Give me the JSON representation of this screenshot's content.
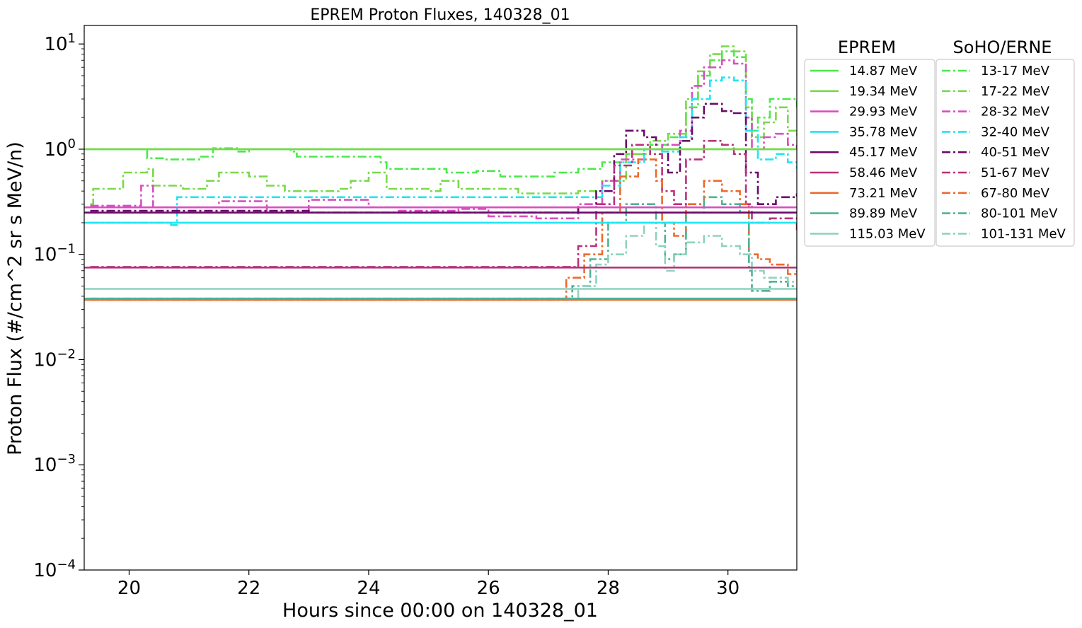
{
  "chart_data": {
    "type": "line",
    "title": "EPREM Proton Fluxes, 140328_01",
    "xlabel": "Hours since 00:00 on 140328_01",
    "ylabel": "Proton Flux (#/cm^2 sr s MeV/n)",
    "xlim": [
      19.25,
      31.15
    ],
    "ylim": [
      0.0001,
      15
    ],
    "yscale": "log",
    "grid": false,
    "x_ticks": [
      {
        "value": 20,
        "label": "20"
      },
      {
        "value": 22,
        "label": "22"
      },
      {
        "value": 24,
        "label": "24"
      },
      {
        "value": 26,
        "label": "26"
      },
      {
        "value": 28,
        "label": "28"
      },
      {
        "value": 30,
        "label": "30"
      }
    ],
    "y_ticks": [
      {
        "value": 10,
        "base": "10",
        "exp": "1"
      },
      {
        "value": 1,
        "base": "10",
        "exp": "0"
      },
      {
        "value": 0.1,
        "base": "10",
        "exp": "−1"
      },
      {
        "value": 0.01,
        "base": "10",
        "exp": "−2"
      },
      {
        "value": 0.001,
        "base": "10",
        "exp": "−3"
      },
      {
        "value": 0.0001,
        "base": "10",
        "exp": "−4"
      }
    ],
    "legends": [
      {
        "title": "EPREM",
        "placement": "outside-right",
        "style": "solid",
        "entries": [
          "14.87 MeV",
          "19.34 MeV",
          "29.93 MeV",
          "35.78 MeV",
          "45.17 MeV",
          "58.46 MeV",
          "73.21 MeV",
          "89.89 MeV",
          "115.03 MeV"
        ]
      },
      {
        "title": "SoHO/ERNE",
        "placement": "outside-right",
        "style": "dashdot",
        "entries": [
          "13-17 MeV",
          "17-22 MeV",
          "28-32 MeV",
          "32-40 MeV",
          "40-51 MeV",
          "51-67 MeV",
          "67-80 MeV",
          "80-101 MeV",
          "101-131 MeV"
        ]
      }
    ],
    "eprem_series": [
      {
        "name": "14.87 MeV",
        "color": "#4be84b",
        "value": 1.0
      },
      {
        "name": "19.34 MeV",
        "color": "#7ad94a",
        "value": 1.0
      },
      {
        "name": "29.93 MeV",
        "color": "#d94ec0",
        "value": 0.28
      },
      {
        "name": "35.78 MeV",
        "color": "#1ee6f2",
        "value": 0.2
      },
      {
        "name": "45.17 MeV",
        "color": "#6a0a6a",
        "value": 0.25
      },
      {
        "name": "58.46 MeV",
        "color": "#b8337a",
        "value": 0.075
      },
      {
        "name": "73.21 MeV",
        "color": "#ec6a2e",
        "value": 0.037
      },
      {
        "name": "89.89 MeV",
        "color": "#50b394",
        "value": 0.038
      },
      {
        "name": "115.03 MeV",
        "color": "#8ed3be",
        "value": 0.047
      }
    ],
    "erne_series": [
      {
        "name": "13-17 MeV",
        "color": "#4be84b",
        "points": [
          [
            19.5,
            1.0
          ],
          [
            20.2,
            1.0
          ],
          [
            20.3,
            0.82
          ],
          [
            20.6,
            0.8
          ],
          [
            21.2,
            0.85
          ],
          [
            21.4,
            1.02
          ],
          [
            21.8,
            0.95
          ],
          [
            22.0,
            1.0
          ],
          [
            22.7,
            0.95
          ],
          [
            22.8,
            0.85
          ],
          [
            24.2,
            0.75
          ],
          [
            24.3,
            0.65
          ],
          [
            25.2,
            0.65
          ],
          [
            25.3,
            0.6
          ],
          [
            25.8,
            0.62
          ],
          [
            26.2,
            0.55
          ],
          [
            27.1,
            0.6
          ],
          [
            27.5,
            0.65
          ],
          [
            27.9,
            0.75
          ],
          [
            28.3,
            0.9
          ],
          [
            28.7,
            1.1
          ],
          [
            29.0,
            1.3
          ],
          [
            29.3,
            2.5
          ],
          [
            29.5,
            5.0
          ],
          [
            29.7,
            7.0
          ],
          [
            29.9,
            8.5
          ],
          [
            30.1,
            7.5
          ],
          [
            30.3,
            3.0
          ],
          [
            30.4,
            1.5
          ],
          [
            30.5,
            2.0
          ],
          [
            30.7,
            3.0
          ],
          [
            30.9,
            3.0
          ],
          [
            31.15,
            2.5
          ]
        ]
      },
      {
        "name": "17-22 MeV",
        "color": "#7ad94a",
        "points": [
          [
            19.35,
            0.3
          ],
          [
            19.4,
            0.42
          ],
          [
            19.8,
            0.42
          ],
          [
            19.9,
            0.6
          ],
          [
            20.3,
            0.65
          ],
          [
            20.4,
            0.45
          ],
          [
            20.9,
            0.42
          ],
          [
            21.0,
            0.42
          ],
          [
            21.3,
            0.5
          ],
          [
            21.5,
            0.6
          ],
          [
            22.0,
            0.55
          ],
          [
            22.3,
            0.45
          ],
          [
            22.6,
            0.4
          ],
          [
            23.5,
            0.42
          ],
          [
            23.7,
            0.5
          ],
          [
            24.0,
            0.6
          ],
          [
            24.3,
            0.42
          ],
          [
            25.0,
            0.4
          ],
          [
            25.2,
            0.5
          ],
          [
            25.5,
            0.42
          ],
          [
            26.2,
            0.42
          ],
          [
            26.5,
            0.38
          ],
          [
            27.5,
            0.4
          ],
          [
            27.9,
            0.5
          ],
          [
            28.3,
            0.9
          ],
          [
            28.7,
            1.2
          ],
          [
            29.0,
            1.4
          ],
          [
            29.3,
            3.0
          ],
          [
            29.5,
            5.5
          ],
          [
            29.7,
            8.0
          ],
          [
            29.9,
            9.5
          ],
          [
            30.1,
            8.5
          ],
          [
            30.3,
            2.5
          ],
          [
            30.4,
            1.3
          ],
          [
            30.6,
            1.8
          ],
          [
            30.8,
            2.5
          ],
          [
            31.0,
            1.5
          ],
          [
            31.15,
            1.3
          ]
        ]
      },
      {
        "name": "28-32 MeV",
        "color": "#d94ec0",
        "points": [
          [
            19.35,
            0.29
          ],
          [
            19.9,
            0.29
          ],
          [
            20.2,
            0.45
          ],
          [
            20.4,
            0.28
          ],
          [
            21.5,
            0.32
          ],
          [
            22.3,
            0.25
          ],
          [
            23.0,
            0.33
          ],
          [
            24.0,
            0.28
          ],
          [
            24.5,
            0.26
          ],
          [
            25.5,
            0.27
          ],
          [
            26.0,
            0.23
          ],
          [
            26.8,
            0.22
          ],
          [
            27.5,
            0.3
          ],
          [
            27.9,
            0.5
          ],
          [
            28.2,
            0.8
          ],
          [
            28.6,
            1.0
          ],
          [
            28.9,
            1.1
          ],
          [
            29.2,
            1.5
          ],
          [
            29.4,
            4.0
          ],
          [
            29.6,
            6.0
          ],
          [
            29.9,
            7.0
          ],
          [
            30.1,
            6.5
          ],
          [
            30.3,
            2.0
          ],
          [
            30.4,
            1.0
          ],
          [
            30.6,
            1.3
          ],
          [
            30.8,
            1.4
          ],
          [
            31.0,
            1.1
          ],
          [
            31.15,
            1.0
          ]
        ]
      },
      {
        "name": "32-40 MeV",
        "color": "#1ee6f2",
        "points": [
          [
            19.35,
            0.2
          ],
          [
            20.7,
            0.19
          ],
          [
            20.8,
            0.35
          ],
          [
            24.0,
            0.35
          ],
          [
            27.7,
            0.35
          ],
          [
            27.9,
            0.45
          ],
          [
            28.2,
            0.75
          ],
          [
            28.6,
            1.0
          ],
          [
            28.9,
            0.95
          ],
          [
            29.2,
            1.3
          ],
          [
            29.4,
            3.0
          ],
          [
            29.7,
            4.5
          ],
          [
            29.9,
            4.8
          ],
          [
            30.1,
            4.5
          ],
          [
            30.3,
            1.5
          ],
          [
            30.5,
            0.8
          ],
          [
            30.8,
            0.9
          ],
          [
            31.0,
            0.75
          ],
          [
            31.15,
            0.65
          ]
        ]
      },
      {
        "name": "40-51 MeV",
        "color": "#6a0a6a",
        "points": [
          [
            19.35,
            0.26
          ],
          [
            23.0,
            0.25
          ],
          [
            27.5,
            0.28
          ],
          [
            27.8,
            0.4
          ],
          [
            28.1,
            0.9
          ],
          [
            28.3,
            1.5
          ],
          [
            28.6,
            1.3
          ],
          [
            28.8,
            1.0
          ],
          [
            29.0,
            0.6
          ],
          [
            29.2,
            1.2
          ],
          [
            29.4,
            2.0
          ],
          [
            29.6,
            2.7
          ],
          [
            29.9,
            2.3
          ],
          [
            30.1,
            2.2
          ],
          [
            30.3,
            0.6
          ],
          [
            30.5,
            0.3
          ],
          [
            30.8,
            0.35
          ],
          [
            31.15,
            0.38
          ]
        ]
      },
      {
        "name": "51-67 MeV",
        "color": "#b8337a",
        "points": [
          [
            19.35,
            0.076
          ],
          [
            27.2,
            0.076
          ],
          [
            27.5,
            0.12
          ],
          [
            27.8,
            0.3
          ],
          [
            28.1,
            0.7
          ],
          [
            28.4,
            1.1
          ],
          [
            28.7,
            0.9
          ],
          [
            28.9,
            0.4
          ],
          [
            29.1,
            0.3
          ],
          [
            29.3,
            0.8
          ],
          [
            29.6,
            1.2
          ],
          [
            29.9,
            1.1
          ],
          [
            30.1,
            0.9
          ],
          [
            30.3,
            0.3
          ],
          [
            30.4,
            0.2
          ],
          [
            30.7,
            0.22
          ],
          [
            31.15,
            0.17
          ]
        ]
      },
      {
        "name": "67-80 MeV",
        "color": "#ec6a2e",
        "points": [
          [
            19.35,
            0.037
          ],
          [
            27.1,
            0.037
          ],
          [
            27.3,
            0.06
          ],
          [
            27.6,
            0.1
          ],
          [
            27.9,
            0.25
          ],
          [
            28.2,
            0.55
          ],
          [
            28.5,
            0.8
          ],
          [
            28.8,
            0.5
          ],
          [
            28.9,
            0.2
          ],
          [
            29.1,
            0.15
          ],
          [
            29.3,
            0.3
          ],
          [
            29.6,
            0.5
          ],
          [
            29.9,
            0.4
          ],
          [
            30.2,
            0.3
          ],
          [
            30.35,
            0.1
          ],
          [
            30.5,
            0.09
          ],
          [
            30.7,
            0.08
          ],
          [
            31.0,
            0.065
          ],
          [
            31.15,
            0.07
          ]
        ]
      },
      {
        "name": "80-101 MeV",
        "color": "#50b394",
        "points": [
          [
            19.35,
            0.038
          ],
          [
            27.1,
            0.038
          ],
          [
            27.4,
            0.05
          ],
          [
            27.7,
            0.09
          ],
          [
            28.0,
            0.2
          ],
          [
            28.3,
            0.3
          ],
          [
            28.6,
            0.3
          ],
          [
            28.8,
            0.2
          ],
          [
            28.95,
            0.09
          ],
          [
            29.1,
            0.1
          ],
          [
            29.3,
            0.25
          ],
          [
            29.6,
            0.35
          ],
          [
            29.9,
            0.3
          ],
          [
            30.2,
            0.25
          ],
          [
            30.35,
            0.07
          ],
          [
            30.4,
            0.045
          ],
          [
            30.7,
            0.055
          ],
          [
            31.0,
            0.05
          ],
          [
            31.15,
            0.05
          ]
        ]
      },
      {
        "name": "101-131 MeV",
        "color": "#8ed3be",
        "points": [
          [
            19.35,
            0.038
          ],
          [
            27.1,
            0.038
          ],
          [
            27.5,
            0.05
          ],
          [
            27.8,
            0.08
          ],
          [
            28.0,
            0.1
          ],
          [
            28.3,
            0.15
          ],
          [
            28.6,
            0.2
          ],
          [
            28.8,
            0.12
          ],
          [
            28.95,
            0.07
          ],
          [
            29.1,
            0.1
          ],
          [
            29.3,
            0.13
          ],
          [
            29.6,
            0.15
          ],
          [
            29.9,
            0.12
          ],
          [
            30.2,
            0.1
          ],
          [
            30.4,
            0.07
          ],
          [
            30.6,
            0.06
          ],
          [
            31.0,
            0.055
          ],
          [
            31.15,
            0.055
          ]
        ]
      }
    ]
  }
}
